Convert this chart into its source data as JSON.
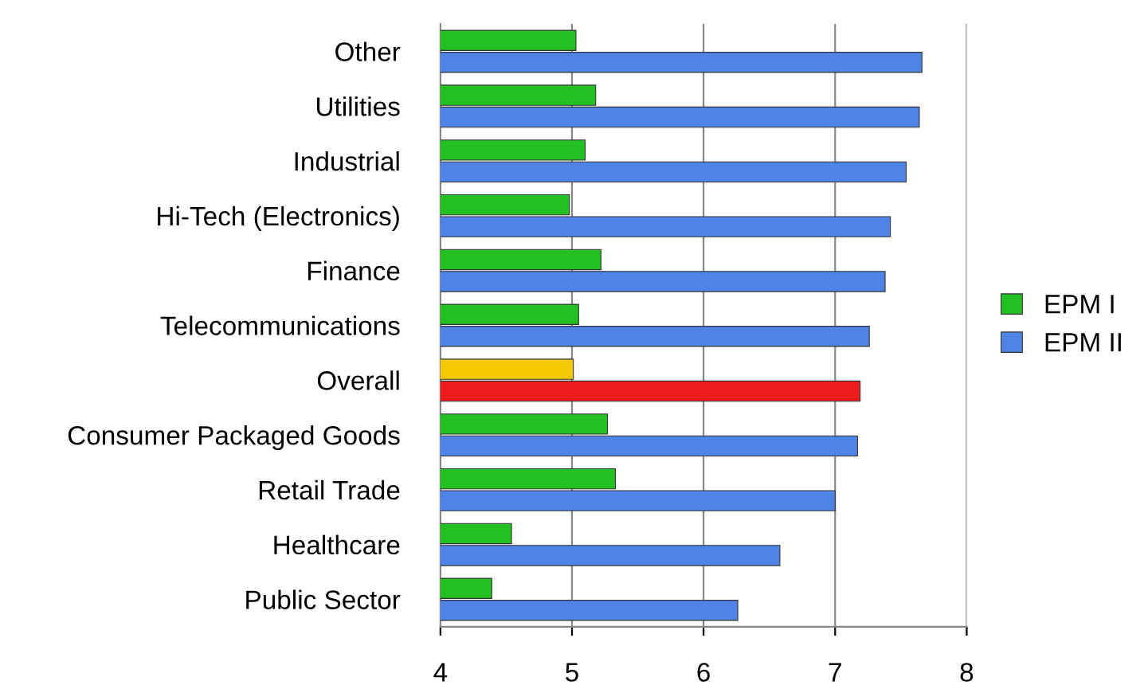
{
  "chart_data": {
    "type": "bar",
    "orientation": "horizontal",
    "categories": [
      "Other",
      "Utilities",
      "Industrial",
      "Hi-Tech (Electronics)",
      "Finance",
      "Telecommunications",
      "Overall",
      "Consumer Packaged Goods",
      "Retail Trade",
      "Healthcare",
      "Public Sector"
    ],
    "series": [
      {
        "name": "EPM I",
        "color": "#22c022",
        "colors": [
          "#22c022",
          "#22c022",
          "#22c022",
          "#22c022",
          "#22c022",
          "#22c022",
          "#f5c800",
          "#22c022",
          "#22c022",
          "#22c022",
          "#22c022"
        ],
        "values": [
          5.03,
          5.18,
          5.1,
          4.98,
          5.22,
          5.05,
          5.01,
          5.27,
          5.33,
          4.54,
          4.39
        ]
      },
      {
        "name": "EPM II",
        "color": "#4f84e6",
        "colors": [
          "#4f84e6",
          "#4f84e6",
          "#4f84e6",
          "#4f84e6",
          "#4f84e6",
          "#4f84e6",
          "#ee1c1c",
          "#4f84e6",
          "#4f84e6",
          "#4f84e6",
          "#4f84e6"
        ],
        "values": [
          7.66,
          7.64,
          7.54,
          7.42,
          7.38,
          7.26,
          7.19,
          7.17,
          7.0,
          6.58,
          6.26
        ]
      }
    ],
    "xlim": [
      4,
      8
    ],
    "xticks": [
      4,
      5,
      6,
      7,
      8
    ],
    "grid": "x",
    "legend": "right"
  }
}
